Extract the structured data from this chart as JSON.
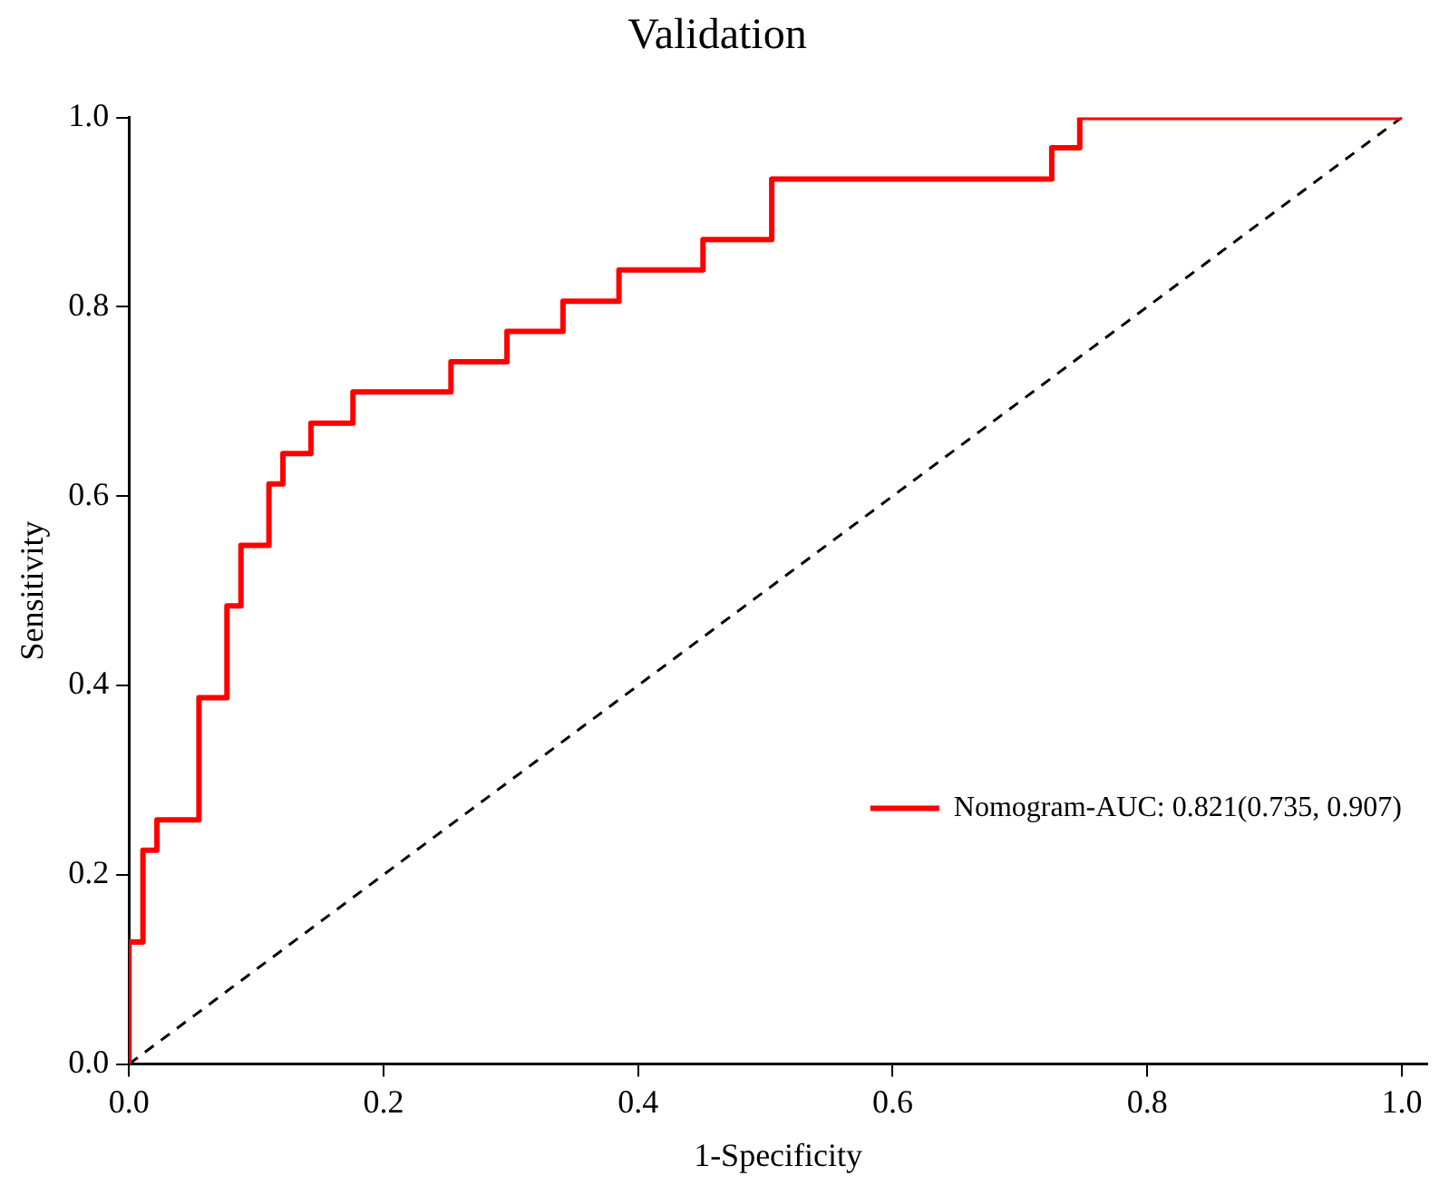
{
  "chart_data": {
    "type": "step",
    "title": "Validation",
    "xlabel": "1-Specificity",
    "ylabel": "Sensitivity",
    "xlim": [
      0,
      1.02
    ],
    "ylim": [
      0,
      1
    ],
    "xticks": [
      {
        "value": 0,
        "label": "0.0"
      },
      {
        "value": 0.2,
        "label": "0.2"
      },
      {
        "value": 0.4,
        "label": "0.4"
      },
      {
        "value": 0.6,
        "label": "0.6"
      },
      {
        "value": 0.8,
        "label": "0.8"
      },
      {
        "value": 1,
        "label": "1.0"
      }
    ],
    "yticks": [
      {
        "value": 0,
        "label": "0.0"
      },
      {
        "value": 0.2,
        "label": "0.2"
      },
      {
        "value": 0.4,
        "label": "0.4"
      },
      {
        "value": 0.6,
        "label": "0.6"
      },
      {
        "value": 0.8,
        "label": "0.8"
      },
      {
        "value": 1,
        "label": "1.0"
      }
    ],
    "grid": false,
    "legend": "bottom right",
    "marker": "none",
    "series": [
      {
        "name": "Nomogram-AUC: 0.821(0.735, 0.907)",
        "type": "step",
        "color": "#ff0000",
        "line_style": "solid",
        "x": [
          0,
          0,
          0.011,
          0.022,
          0.055,
          0.077,
          0.088,
          0.11,
          0.121,
          0.143,
          0.176,
          0.253,
          0.297,
          0.341,
          0.385,
          0.451,
          0.505,
          0.725,
          0.747,
          1
        ],
        "values": [
          0,
          0.129,
          0.226,
          0.258,
          0.387,
          0.484,
          0.548,
          0.613,
          0.645,
          0.677,
          0.71,
          0.742,
          0.774,
          0.806,
          0.839,
          0.871,
          0.935,
          0.968,
          1,
          1
        ]
      },
      {
        "type": "line",
        "color": "#000000",
        "line_style": "dashed",
        "x": [
          0,
          1
        ],
        "values": [
          0,
          1
        ]
      }
    ]
  }
}
